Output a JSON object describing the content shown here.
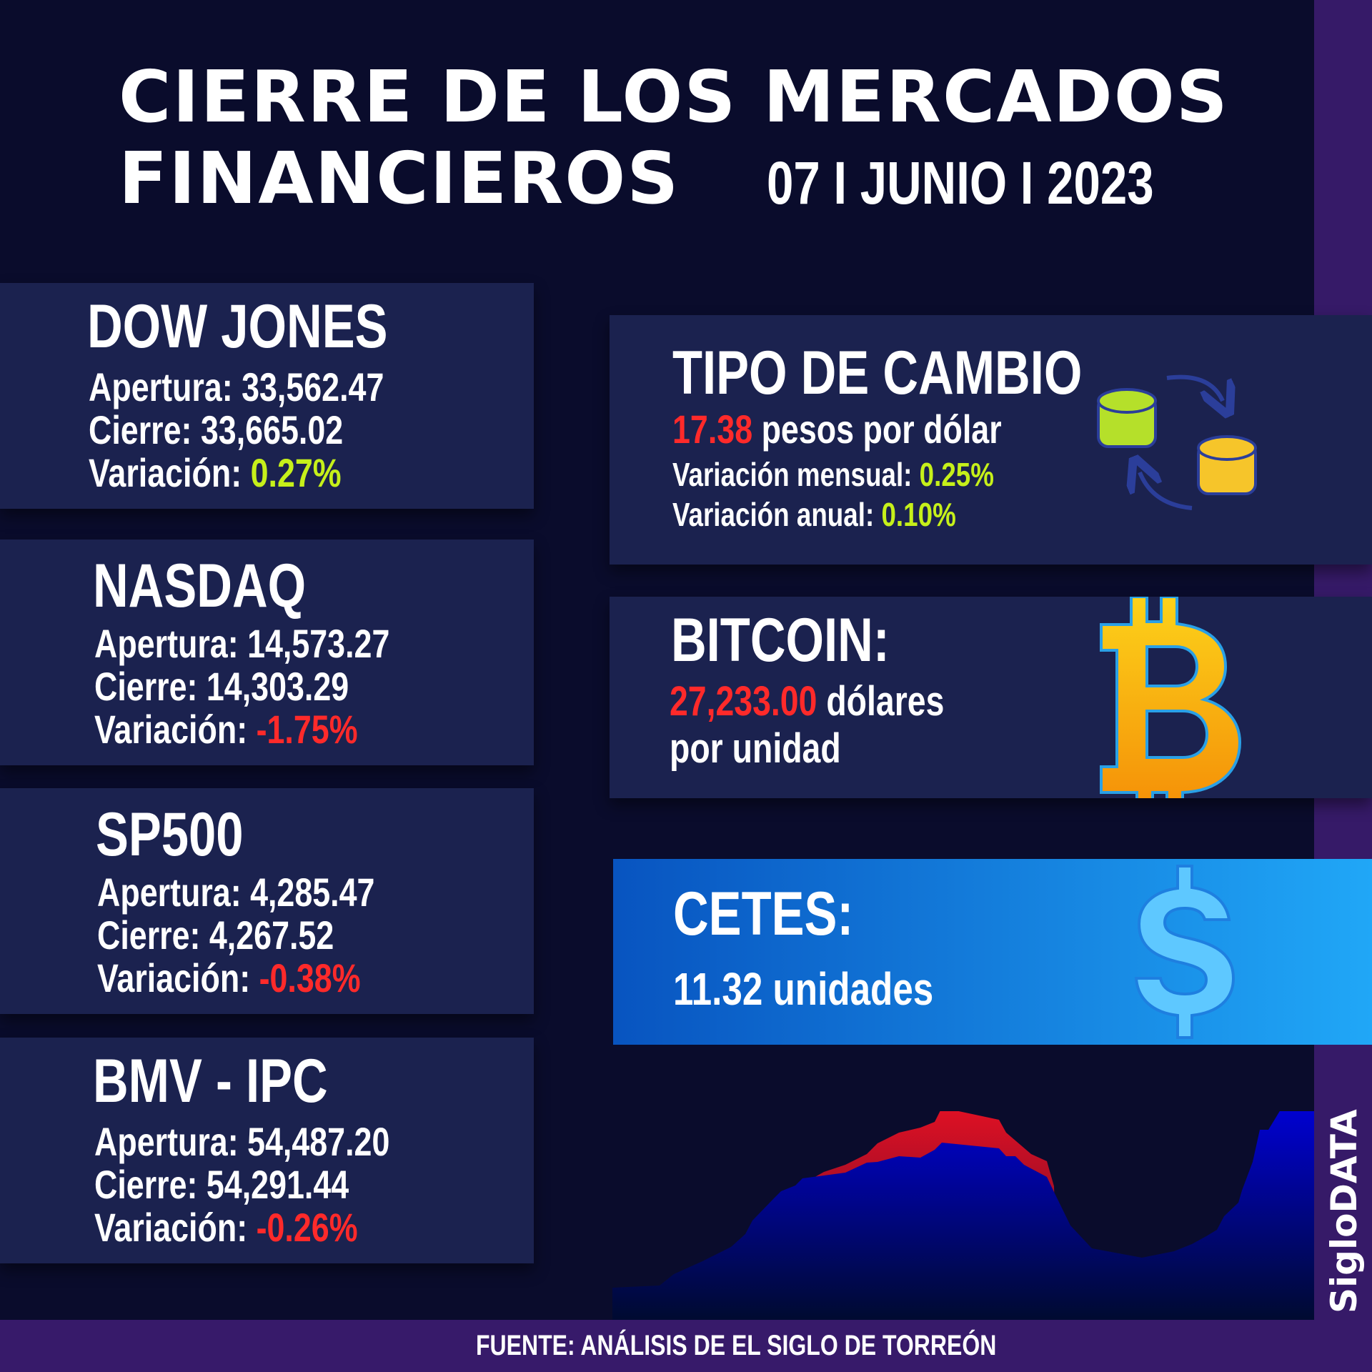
{
  "header": {
    "title_line1": "CIERRE DE LOS MERCADOS",
    "title_line2": "FINANCIEROS",
    "date": "07 I JUNIO I 2023"
  },
  "indices": [
    {
      "name": "DOW JONES",
      "open_label": "Apertura:",
      "open": "33,562.47",
      "close_label": "Cierre:",
      "close": "33,665.02",
      "var_label": "Variación:",
      "variation": "0.27%"
    },
    {
      "name": "NASDAQ",
      "open_label": "Apertura:",
      "open": "14,573.27",
      "close_label": "Cierre:",
      "close": "14,303.29",
      "var_label": "Variación:",
      "variation": "-1.75%"
    },
    {
      "name": "SP500",
      "open_label": "Apertura:",
      "open": "4,285.47",
      "close_label": "Cierre:",
      "close": "4,267.52",
      "var_label": "Variación:",
      "variation": "-0.38%"
    },
    {
      "name": "BMV - IPC",
      "open_label": "Apertura:",
      "open": "54,487.20",
      "close_label": "Cierre:",
      "close": "54,291.44",
      "var_label": "Variación:",
      "variation": "-0.26%"
    }
  ],
  "exchange": {
    "title": "TIPO DE CAMBIO",
    "rate": "17.38",
    "rate_unit": "pesos por dólar",
    "monthly_label": "Variación mensual:",
    "monthly": "0.25%",
    "annual_label": "Variación anual:",
    "annual": "0.10%",
    "icon": "coins-exchange-icon"
  },
  "bitcoin": {
    "title": "BITCOIN:",
    "price": "27,233.00",
    "unit1": "dólares",
    "unit2": "por unidad",
    "icon": "bitcoin-icon"
  },
  "cetes": {
    "title": "CETES:",
    "value": "11.32 unidades",
    "icon": "dollar-icon"
  },
  "footer": {
    "source": "FUENTE: ANÁLISIS DE EL SIGLO DE TORREÓN",
    "brand": "SigloDATA"
  },
  "colors": {
    "positive": "#c6f01a",
    "negative": "#ff2a2a",
    "card": "#1b224f",
    "accent_purple": "#371a6a"
  }
}
